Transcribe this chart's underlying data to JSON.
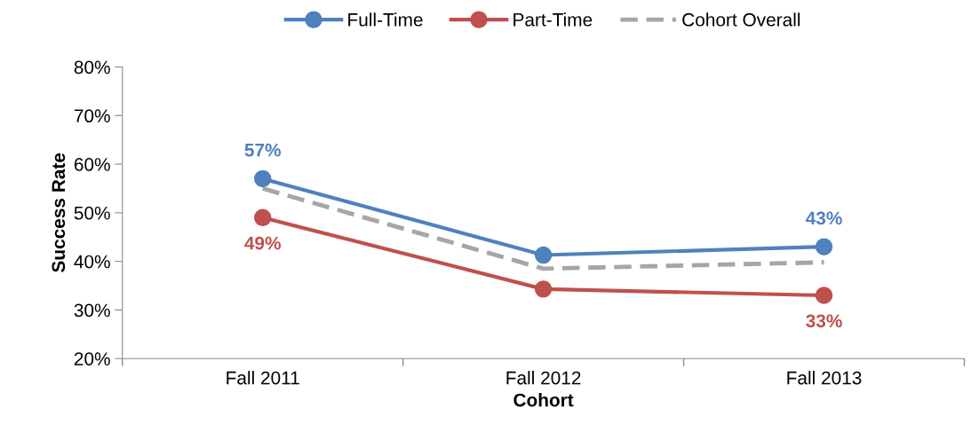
{
  "chart_data": {
    "type": "line",
    "xlabel": "Cohort",
    "ylabel": "Success Rate",
    "categories": [
      "Fall 2011",
      "Fall 2012",
      "Fall 2013"
    ],
    "ylim": [
      20,
      80
    ],
    "yticks": [
      {
        "value": 20,
        "label": "20%"
      },
      {
        "value": 30,
        "label": "30%"
      },
      {
        "value": 40,
        "label": "40%"
      },
      {
        "value": 50,
        "label": "50%"
      },
      {
        "value": 60,
        "label": "60%"
      },
      {
        "value": 70,
        "label": "70%"
      },
      {
        "value": 80,
        "label": "80%"
      }
    ],
    "grid": false,
    "legend": "top",
    "series": [
      {
        "name": "Full-Time",
        "color": "#4f81bd",
        "values": [
          57,
          41.3,
          43
        ],
        "value_labels": [
          "57%",
          null,
          "43%"
        ],
        "marker": "circle",
        "line_style": "solid"
      },
      {
        "name": "Part-Time",
        "color": "#c0504d",
        "values": [
          49,
          34.3,
          33
        ],
        "value_labels": [
          "49%",
          null,
          "33%"
        ],
        "marker": "circle",
        "line_style": "solid"
      },
      {
        "name": "Cohort Overall",
        "color": "#a6a6a6",
        "values": [
          55,
          38.5,
          39.8
        ],
        "marker": "none",
        "line_style": "dashed"
      }
    ]
  }
}
